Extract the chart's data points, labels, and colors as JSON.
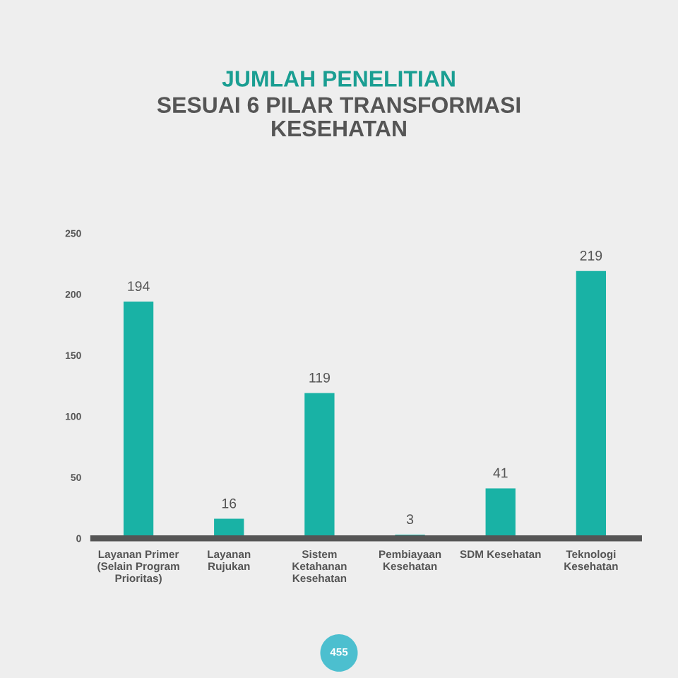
{
  "chart_data": {
    "type": "bar",
    "title": "JUMLAH PENELITIAN",
    "subtitle": "SESUAI 6 PILAR TRANSFORMASI\nKESEHATAN",
    "categories": [
      "Layanan Primer\n(Selain Program\nPrioritas)",
      "Layanan\nRujukan",
      "Sistem\nKetahanan\nKesehatan",
      "Pembiayaan\nKesehatan",
      "SDM Kesehatan",
      "Teknologi\nKesehatan"
    ],
    "values": [
      194,
      16,
      119,
      3,
      41,
      219
    ],
    "color": "#19b2a5",
    "ylim": [
      0,
      250
    ],
    "yticks": [
      0,
      50,
      100,
      150,
      200,
      250
    ],
    "data_labels": true,
    "annotations": [
      "455"
    ]
  }
}
